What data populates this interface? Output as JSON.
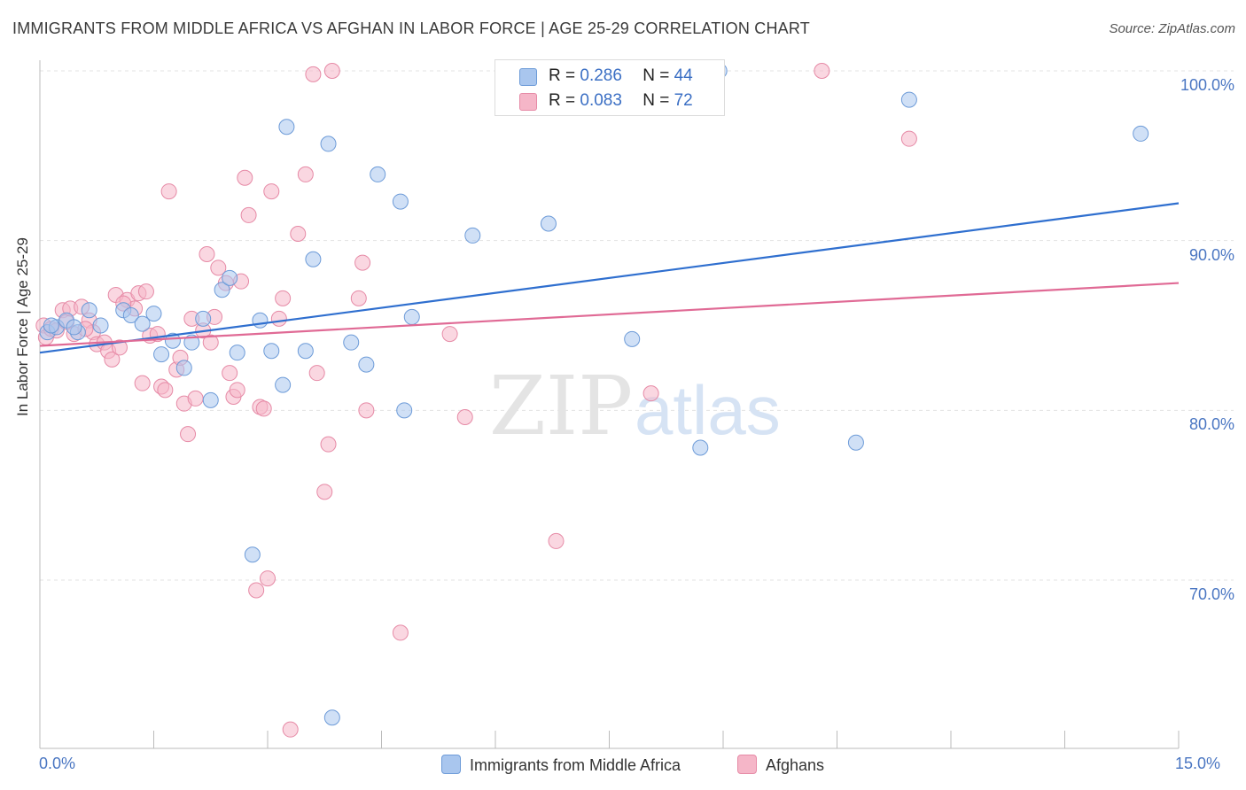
{
  "title": "IMMIGRANTS FROM MIDDLE AFRICA VS AFGHAN IN LABOR FORCE | AGE 25-29 CORRELATION CHART",
  "source": "Source: ZipAtlas.com",
  "watermark": {
    "zip": "ZIP",
    "atlas": "atlas"
  },
  "colors": {
    "blue_fill": "#a9c6ee",
    "blue_stroke": "#6d9bd8",
    "blue_line": "#2f6fcf",
    "pink_fill": "#f5b6c8",
    "pink_stroke": "#e68aa6",
    "pink_line": "#e06a95",
    "grid": "#e3e3e3",
    "axis_text": "#4a76c2"
  },
  "legend": {
    "r_label": "R =",
    "n_label": "N =",
    "series": [
      {
        "r": "0.286",
        "n": "44"
      },
      {
        "r": "0.083",
        "n": "72"
      }
    ]
  },
  "chart_data": {
    "type": "scatter",
    "title": "IMMIGRANTS FROM MIDDLE AFRICA VS AFGHAN IN LABOR FORCE | AGE 25-29 CORRELATION CHART",
    "xlabel": "",
    "ylabel": "In Labor Force | Age 25-29",
    "xlim": [
      0,
      15
    ],
    "ylim": [
      61,
      101.5
    ],
    "x_tick_labels": [
      "0.0%",
      "15.0%"
    ],
    "y_ticks": [
      70,
      80,
      90,
      100
    ],
    "y_tick_labels": [
      "70.0%",
      "80.0%",
      "90.0%",
      "100.0%"
    ],
    "grid": true,
    "legend_position": "top-center",
    "series": [
      {
        "name": "Immigrants from Middle Africa",
        "color": "#a9c6ee",
        "trend": {
          "x": [
            0,
            15
          ],
          "y": [
            83.4,
            92.2
          ]
        },
        "points": [
          [
            0.1,
            84.6
          ],
          [
            0.22,
            84.9
          ],
          [
            0.35,
            85.3
          ],
          [
            0.5,
            84.6
          ],
          [
            0.65,
            85.9
          ],
          [
            0.8,
            85.0
          ],
          [
            1.1,
            85.9
          ],
          [
            1.2,
            85.6
          ],
          [
            1.35,
            85.1
          ],
          [
            1.5,
            85.7
          ],
          [
            1.6,
            83.3
          ],
          [
            1.75,
            84.1
          ],
          [
            1.9,
            82.5
          ],
          [
            2.0,
            84.0
          ],
          [
            2.15,
            85.4
          ],
          [
            2.25,
            80.6
          ],
          [
            2.4,
            87.1
          ],
          [
            2.5,
            87.8
          ],
          [
            2.6,
            83.4
          ],
          [
            2.8,
            71.5
          ],
          [
            2.9,
            85.3
          ],
          [
            3.05,
            83.5
          ],
          [
            3.2,
            81.5
          ],
          [
            3.25,
            96.7
          ],
          [
            3.5,
            83.5
          ],
          [
            3.6,
            88.9
          ],
          [
            3.8,
            95.7
          ],
          [
            3.85,
            61.9
          ],
          [
            4.1,
            84.0
          ],
          [
            4.3,
            82.7
          ],
          [
            4.45,
            93.9
          ],
          [
            4.75,
            92.3
          ],
          [
            4.8,
            80.0
          ],
          [
            4.9,
            85.5
          ],
          [
            5.7,
            90.3
          ],
          [
            6.7,
            91.0
          ],
          [
            7.8,
            84.2
          ],
          [
            8.7,
            77.8
          ],
          [
            8.95,
            100.0
          ],
          [
            10.75,
            78.1
          ],
          [
            11.45,
            98.3
          ],
          [
            14.5,
            96.3
          ],
          [
            0.15,
            85.0
          ],
          [
            0.45,
            84.9
          ]
        ]
      },
      {
        "name": "Afghans",
        "color": "#f5b6c8",
        "trend": {
          "x": [
            0,
            15
          ],
          "y": [
            83.8,
            87.5
          ]
        },
        "points": [
          [
            0.05,
            85.0
          ],
          [
            0.08,
            84.3
          ],
          [
            0.15,
            84.8
          ],
          [
            0.22,
            84.7
          ],
          [
            0.3,
            85.9
          ],
          [
            0.35,
            85.2
          ],
          [
            0.4,
            86.0
          ],
          [
            0.45,
            84.5
          ],
          [
            0.55,
            86.1
          ],
          [
            0.65,
            85.3
          ],
          [
            0.7,
            84.6
          ],
          [
            0.75,
            83.9
          ],
          [
            0.85,
            84.0
          ],
          [
            0.9,
            83.5
          ],
          [
            0.95,
            83.0
          ],
          [
            1.0,
            86.8
          ],
          [
            1.05,
            83.7
          ],
          [
            1.15,
            86.5
          ],
          [
            1.25,
            86.0
          ],
          [
            1.3,
            86.9
          ],
          [
            1.35,
            81.6
          ],
          [
            1.4,
            87.0
          ],
          [
            1.45,
            84.4
          ],
          [
            1.55,
            84.5
          ],
          [
            1.6,
            81.4
          ],
          [
            1.65,
            81.2
          ],
          [
            1.7,
            92.9
          ],
          [
            1.8,
            82.4
          ],
          [
            1.85,
            83.1
          ],
          [
            1.9,
            80.4
          ],
          [
            1.95,
            78.6
          ],
          [
            2.0,
            85.4
          ],
          [
            2.05,
            80.7
          ],
          [
            2.15,
            84.7
          ],
          [
            2.2,
            89.2
          ],
          [
            2.25,
            84.0
          ],
          [
            2.3,
            85.5
          ],
          [
            2.35,
            88.4
          ],
          [
            2.45,
            87.5
          ],
          [
            2.5,
            82.2
          ],
          [
            2.55,
            80.8
          ],
          [
            2.6,
            81.2
          ],
          [
            2.65,
            87.6
          ],
          [
            2.7,
            93.7
          ],
          [
            2.75,
            91.5
          ],
          [
            2.85,
            69.4
          ],
          [
            2.9,
            80.2
          ],
          [
            2.95,
            80.1
          ],
          [
            3.0,
            70.1
          ],
          [
            3.05,
            92.9
          ],
          [
            3.15,
            85.4
          ],
          [
            3.2,
            86.6
          ],
          [
            3.3,
            61.2
          ],
          [
            3.4,
            90.4
          ],
          [
            3.5,
            93.9
          ],
          [
            3.6,
            99.8
          ],
          [
            3.65,
            82.2
          ],
          [
            3.75,
            75.2
          ],
          [
            3.8,
            78.0
          ],
          [
            3.85,
            100.0
          ],
          [
            4.2,
            86.6
          ],
          [
            4.25,
            88.7
          ],
          [
            4.3,
            80.0
          ],
          [
            4.75,
            66.9
          ],
          [
            5.4,
            84.5
          ],
          [
            5.6,
            79.6
          ],
          [
            6.8,
            72.3
          ],
          [
            8.05,
            81.0
          ],
          [
            10.3,
            100.0
          ],
          [
            11.45,
            96.0
          ],
          [
            0.6,
            84.8
          ],
          [
            1.1,
            86.3
          ]
        ]
      }
    ]
  }
}
